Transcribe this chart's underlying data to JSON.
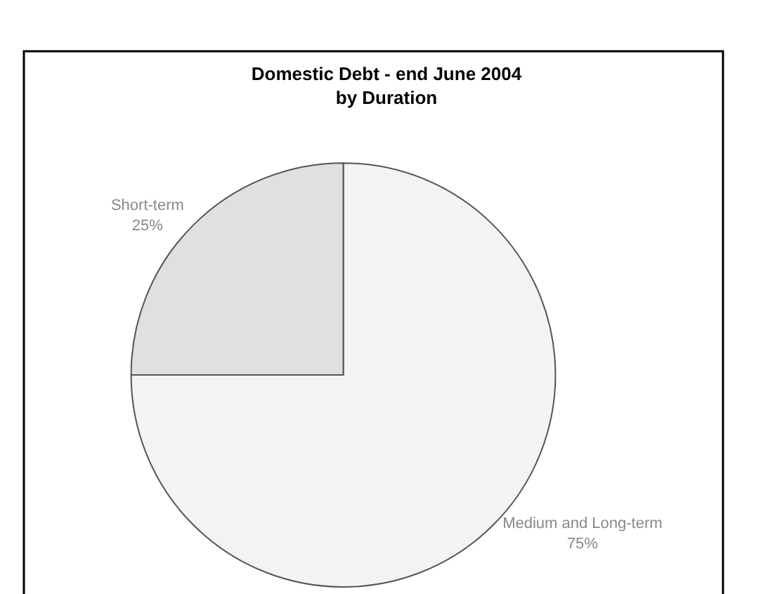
{
  "chart_data": {
    "type": "pie",
    "title": "Domestic Debt - end June 2004\nby Duration",
    "categories": [
      "Medium and Long-term",
      "Short-term"
    ],
    "values": [
      75,
      25
    ],
    "value_labels": [
      "75%",
      "25%"
    ],
    "colors": [
      "#f3f3f3",
      "#e0e0e0"
    ],
    "legend": false
  }
}
